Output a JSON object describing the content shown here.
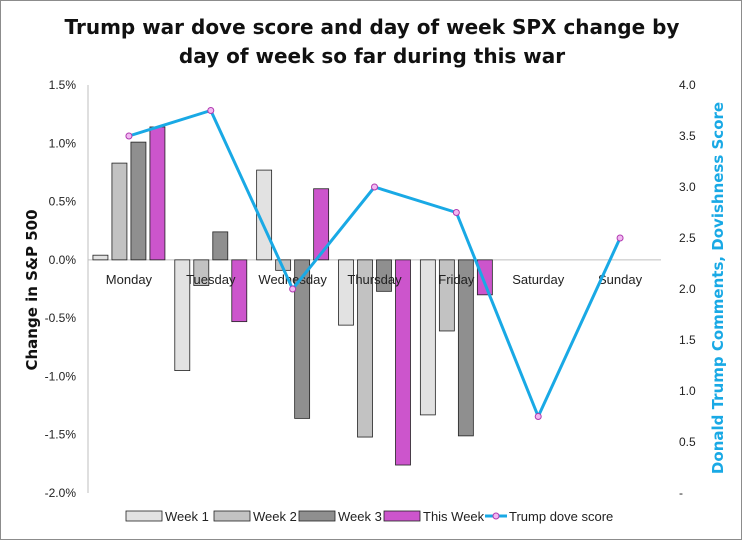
{
  "chart_data": {
    "type": "bar",
    "title_lines": [
      "Trump war dove score and day of week SPX change by",
      "day of week so far during this war"
    ],
    "ylabel": "Change in S&P 500",
    "y2label": "Donald Trump Comments, Dovishness Score",
    "categories": [
      "Monday",
      "Tuesday",
      "Wednesday",
      "Thursday",
      "Friday",
      "Saturday",
      "Sunday"
    ],
    "ylim": [
      -2.0,
      1.5
    ],
    "y_ticks": [
      "1.5%",
      "1.0%",
      "0.5%",
      "0.0%",
      "-0.5%",
      "-1.0%",
      "-1.5%",
      "-2.0%"
    ],
    "y_tick_values": [
      1.5,
      1.0,
      0.5,
      0.0,
      -0.5,
      -1.0,
      -1.5,
      -2.0
    ],
    "y2lim": [
      0,
      4.0
    ],
    "y2_ticks": [
      "4.0",
      "3.5",
      "3.0",
      "2.5",
      "2.0",
      "1.5",
      "1.0",
      "0.5",
      "-"
    ],
    "y2_tick_values": [
      4.0,
      3.5,
      3.0,
      2.5,
      2.0,
      1.5,
      1.0,
      0.5,
      0.0
    ],
    "series": [
      {
        "name": "Week 1",
        "kind": "bar",
        "color": "#e2e2e2",
        "values": [
          0.04,
          -0.95,
          0.77,
          -0.56,
          -1.33,
          null,
          null
        ]
      },
      {
        "name": "Week 2",
        "kind": "bar",
        "color": "#c2c2c2",
        "values": [
          0.83,
          -0.22,
          -0.09,
          -1.52,
          -0.61,
          null,
          null
        ]
      },
      {
        "name": "Week 3",
        "kind": "bar",
        "color": "#8f8f8f",
        "values": [
          1.01,
          0.24,
          -1.36,
          -0.27,
          -1.51,
          null,
          null
        ]
      },
      {
        "name": "This Week",
        "kind": "bar",
        "color": "#cc55cc",
        "values": [
          1.14,
          -0.53,
          0.61,
          -1.76,
          -0.3,
          null,
          null
        ]
      },
      {
        "name": "Trump dove score",
        "kind": "line",
        "axis": "secondary",
        "color": "#19a9e5",
        "values": [
          3.5,
          3.75,
          2.0,
          3.0,
          2.75,
          0.75,
          2.5
        ]
      }
    ]
  }
}
